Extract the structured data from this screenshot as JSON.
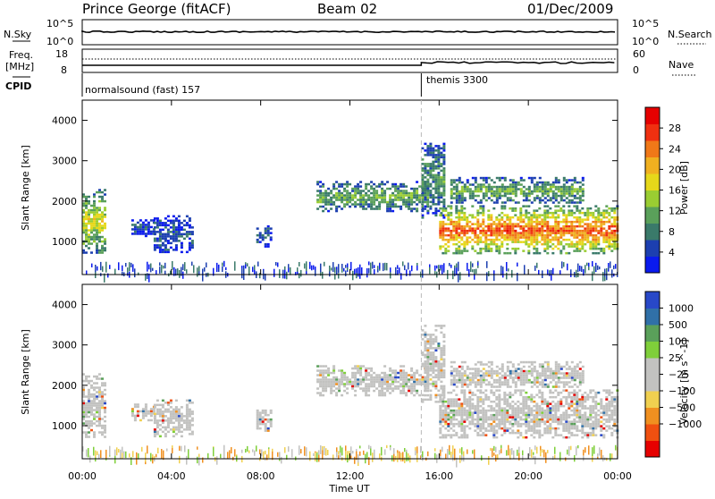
{
  "header": {
    "station": "Prince George (fitACF)",
    "beam": "Beam 02",
    "date": "01/Dec/2009"
  },
  "status_panels": {
    "nsky_label": "N.Sky",
    "nsky_ticks": [
      "10^5",
      "10^0"
    ],
    "nsearch_label": "N.Search",
    "nsearch_ticks": [
      "10^5",
      "10^0"
    ],
    "freq_label": "Freq.",
    "freq_unit": "[MHz]",
    "freq_ticks": [
      "18",
      "8"
    ],
    "nave_label": "Nave",
    "nave_ticks": [
      "60",
      "0"
    ],
    "cpid_label": "CPID",
    "cpid_segments": [
      "normalsound (fast) 157",
      "themis 3300"
    ]
  },
  "time_axis": {
    "label": "Time UT",
    "ticks": [
      "00:00",
      "04:00",
      "08:00",
      "12:00",
      "16:00",
      "20:00",
      "00:00"
    ],
    "mode_change_hour": 15.2
  },
  "range_axis": {
    "label": "Slant Range [km]",
    "ticks": [
      "1000",
      "2000",
      "3000",
      "4000"
    ]
  },
  "colors": {
    "sky": "#000000",
    "gray": "#c2c2c0"
  },
  "chart_data": [
    {
      "type": "heatmap",
      "panel": "power",
      "xlabel": "Time UT",
      "ylabel": "Slant Range [km]",
      "xlim": [
        0,
        24
      ],
      "ylim": [
        180,
        4500
      ],
      "colorbar": {
        "label": "Power [dB]",
        "ticks": [
          "4",
          "8",
          "12",
          "16",
          "20",
          "24",
          "28"
        ],
        "range": [
          0,
          32
        ],
        "colors": [
          "#0a1aee",
          "#1c3fb0",
          "#3a7a6a",
          "#5aa05a",
          "#9acd32",
          "#e6d81a",
          "#f0b020",
          "#f07818",
          "#f03010",
          "#e60000"
        ]
      },
      "regions": [
        {
          "t0": 0.0,
          "t1": 1.0,
          "r0": 700,
          "r1": 2300,
          "level": 0.55
        },
        {
          "t0": 2.2,
          "t1": 3.2,
          "r0": 1150,
          "r1": 1550,
          "level": 0.12
        },
        {
          "t0": 3.2,
          "t1": 5.0,
          "r0": 750,
          "r1": 1650,
          "level": 0.14
        },
        {
          "t0": 7.8,
          "t1": 8.5,
          "r0": 900,
          "r1": 1400,
          "level": 0.14
        },
        {
          "t0": 10.5,
          "t1": 15.5,
          "r0": 1750,
          "r1": 2500,
          "level": 0.38
        },
        {
          "t0": 15.2,
          "t1": 16.2,
          "r0": 1600,
          "r1": 3500,
          "level": 0.3
        },
        {
          "t0": 16.0,
          "t1": 24.0,
          "r0": 700,
          "r1": 1900,
          "level": 0.85
        },
        {
          "t0": 16.5,
          "t1": 22.5,
          "r0": 1950,
          "r1": 2600,
          "level": 0.38
        }
      ],
      "ground_scatter": {
        "t0": 0.0,
        "t1": 24.0,
        "r0": 200,
        "r1": 520
      }
    },
    {
      "type": "heatmap",
      "panel": "velocity",
      "xlabel": "Time UT",
      "ylabel": "Slant Range [km]",
      "xlim": [
        0,
        24
      ],
      "ylim": [
        180,
        4500
      ],
      "colorbar": {
        "label": "Velocity [m s^-1]",
        "ticks": [
          "1000",
          "500",
          "100",
          "25",
          "−25",
          "−100",
          "−500",
          "−1000"
        ],
        "colors": [
          "#2848c8",
          "#3070a8",
          "#5aa05a",
          "#7fcf3a",
          "#c2c2c0",
          "#c2c2c0",
          "#f0d050",
          "#f09020",
          "#f05010",
          "#e60000"
        ]
      },
      "regions": [
        {
          "t0": 0.0,
          "t1": 1.0,
          "r0": 700,
          "r1": 2300,
          "level": 0.55
        },
        {
          "t0": 2.2,
          "t1": 3.2,
          "r0": 1150,
          "r1": 1550,
          "level": 0.12
        },
        {
          "t0": 3.2,
          "t1": 5.0,
          "r0": 750,
          "r1": 1650,
          "level": 0.14
        },
        {
          "t0": 7.8,
          "t1": 8.5,
          "r0": 900,
          "r1": 1400,
          "level": 0.14
        },
        {
          "t0": 10.5,
          "t1": 15.5,
          "r0": 1750,
          "r1": 2500,
          "level": 0.38
        },
        {
          "t0": 15.2,
          "t1": 16.2,
          "r0": 1600,
          "r1": 3500,
          "level": 0.3
        },
        {
          "t0": 16.0,
          "t1": 24.0,
          "r0": 700,
          "r1": 1900,
          "level": 0.85
        },
        {
          "t0": 16.5,
          "t1": 22.5,
          "r0": 1950,
          "r1": 2600,
          "level": 0.38
        }
      ],
      "ground_scatter": {
        "t0": 0.0,
        "t1": 24.0,
        "r0": 200,
        "r1": 520
      }
    }
  ]
}
